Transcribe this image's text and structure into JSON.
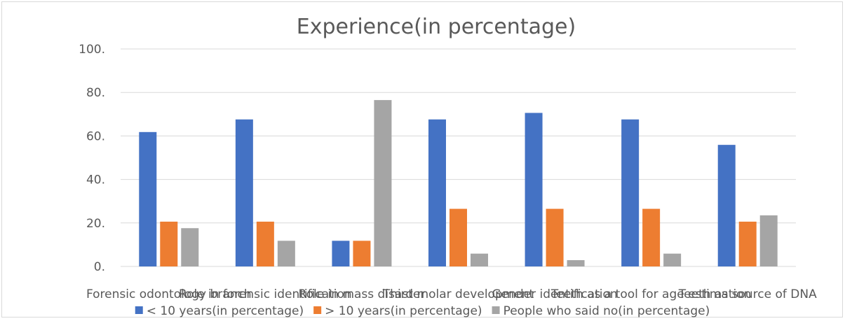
{
  "chart_data": {
    "type": "bar",
    "title": "Experience(in percentage)",
    "xlabel": "",
    "ylabel": "",
    "ylim": [
      0,
      100
    ],
    "yticks": [
      "0.",
      "20.",
      "40.",
      "60.",
      "80.",
      "100."
    ],
    "grid": true,
    "legend_position": "bottom",
    "categories": [
      "Forensic odontology branch",
      "Role in forensic identification",
      "Role in mass disaster",
      "Third molar development",
      "Gender identification",
      "Teeth as a tool for age estimation",
      "Teeth as source of DNA"
    ],
    "series": [
      {
        "name": "< 10 years(in percentage)",
        "color": "#4472c4",
        "values": [
          61.8,
          67.6,
          11.8,
          67.6,
          70.6,
          67.6,
          55.9
        ]
      },
      {
        "name": "> 10 years(in percentage)",
        "color": "#ed7d31",
        "values": [
          20.6,
          20.6,
          11.8,
          26.5,
          26.5,
          26.5,
          20.6
        ]
      },
      {
        "name": "People who said no(in percentage)",
        "color": "#a5a5a5",
        "values": [
          17.6,
          11.8,
          76.5,
          5.9,
          2.9,
          5.9,
          23.5
        ]
      }
    ]
  }
}
